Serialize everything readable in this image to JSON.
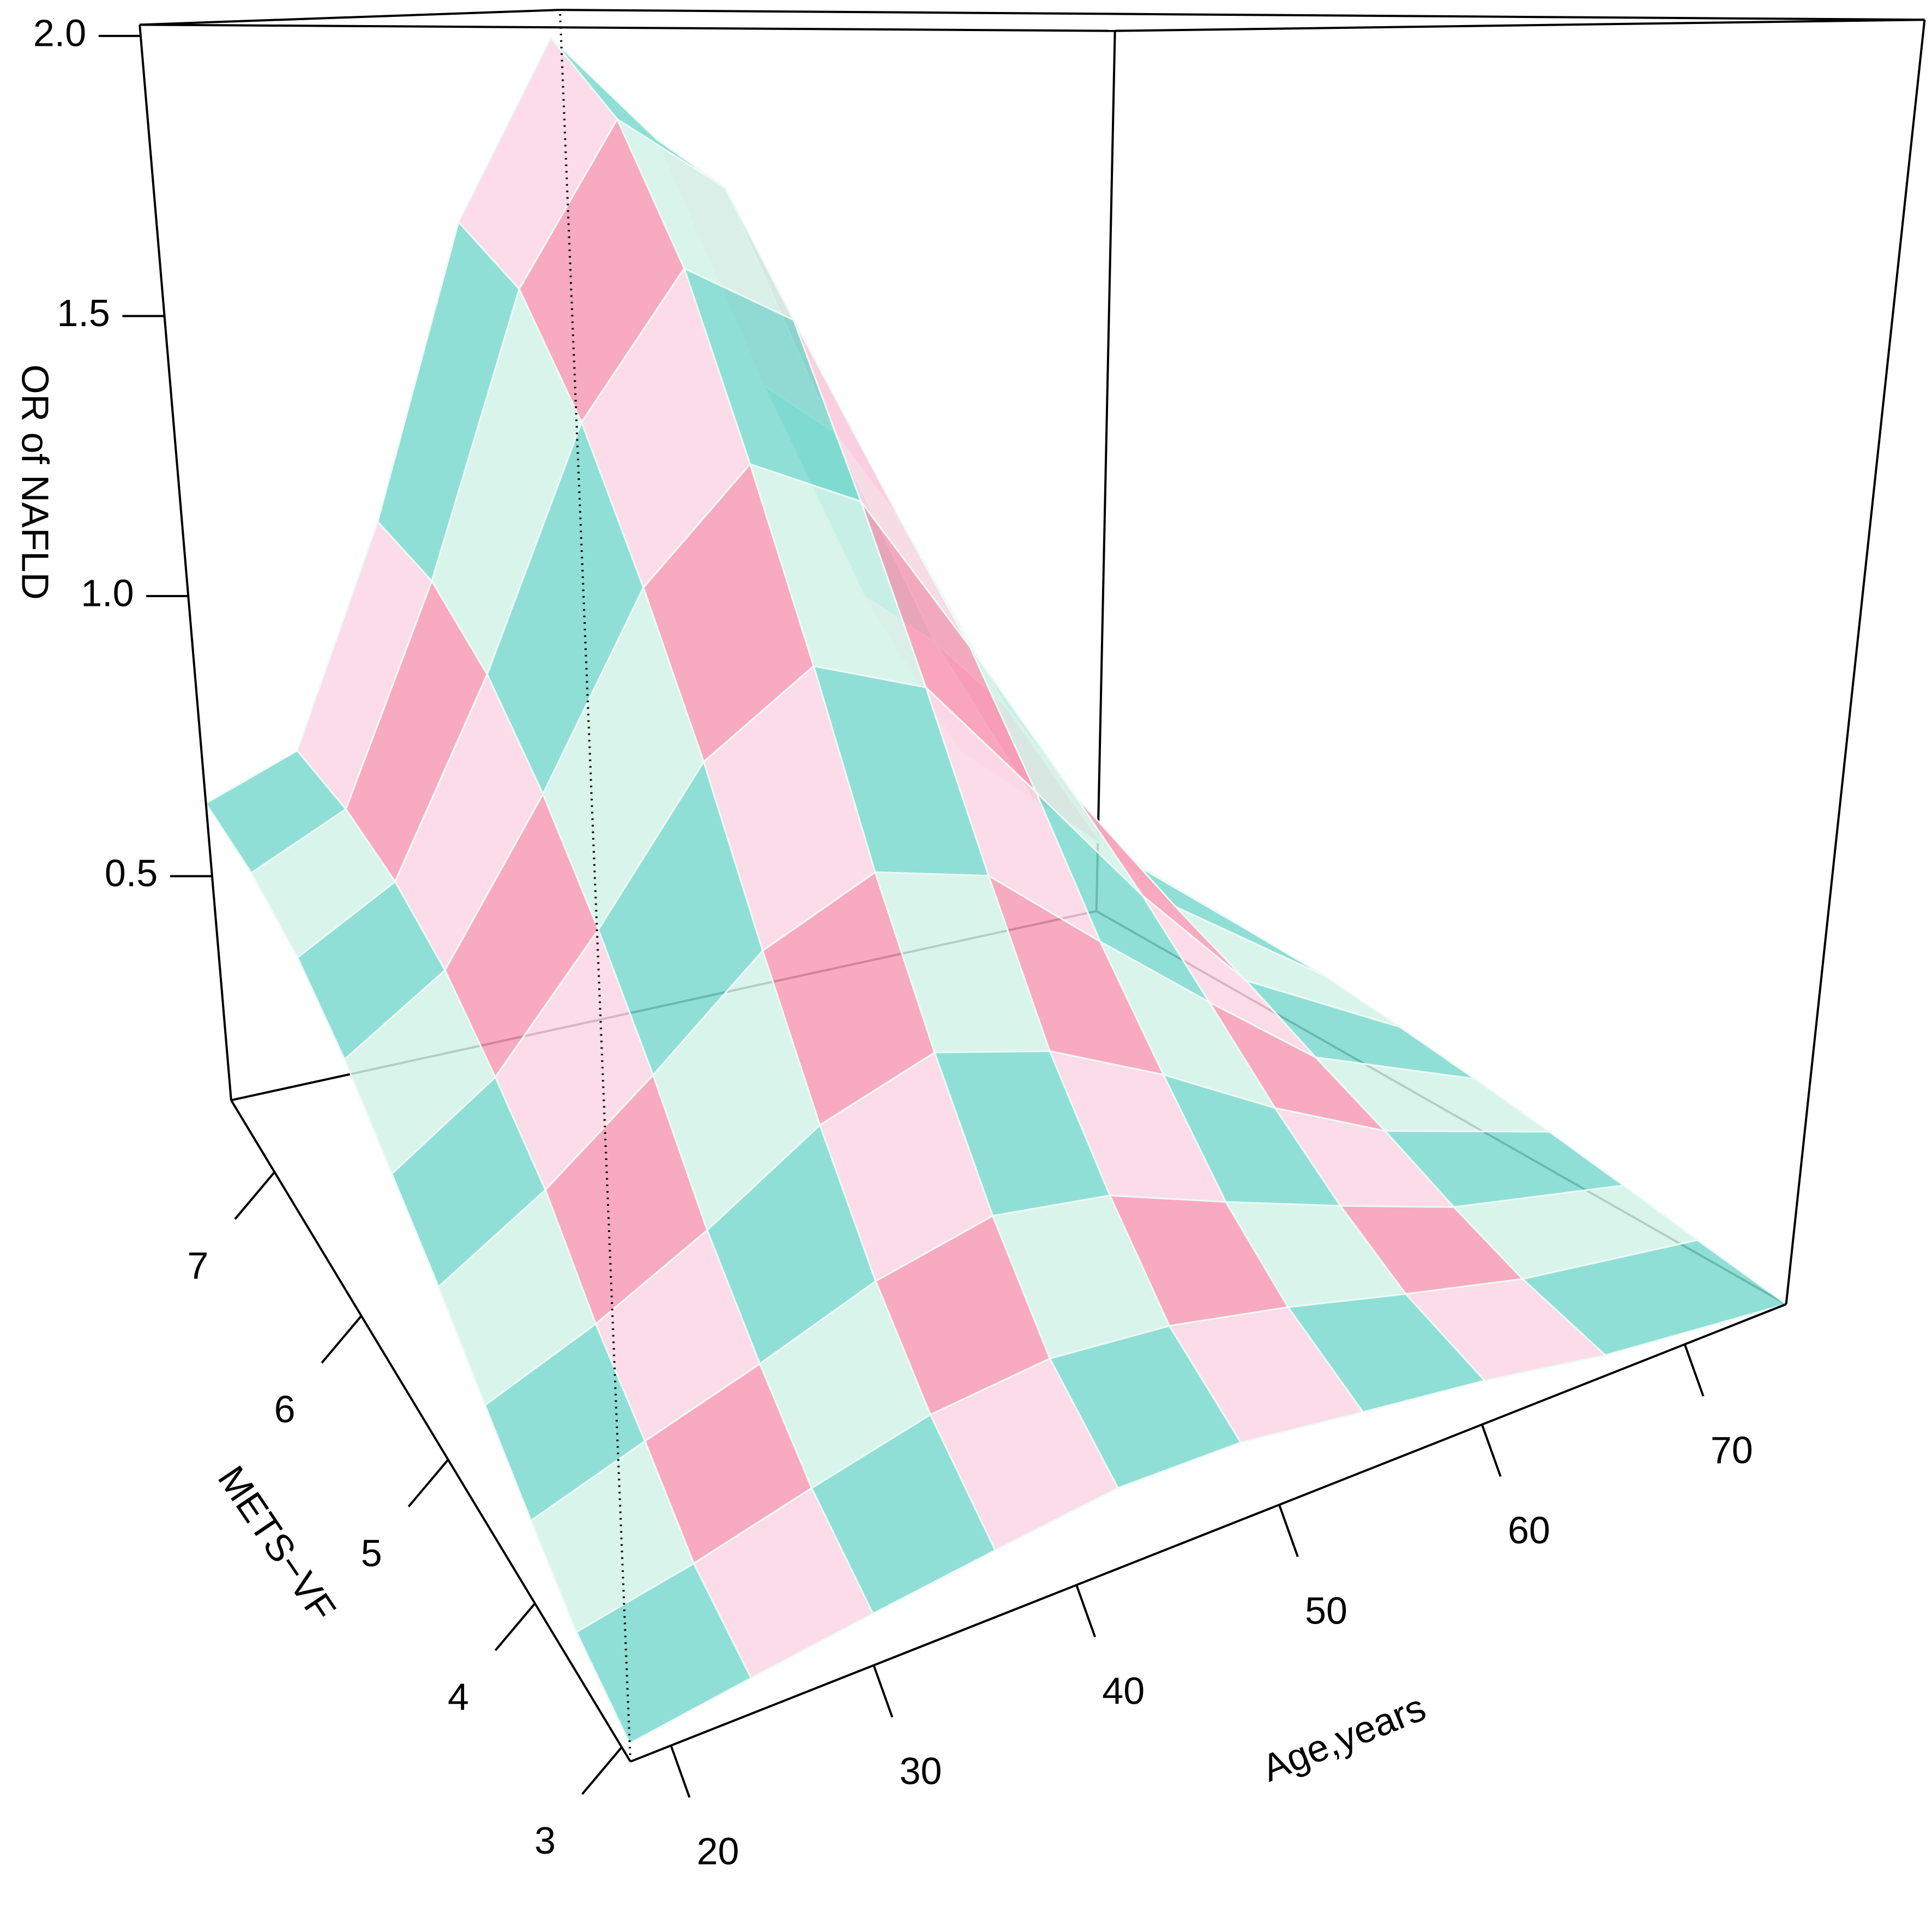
{
  "chart_data": {
    "type": "surface",
    "xlabel": "Age,years",
    "ylabel": "METS−VF",
    "zlabel": "OR of NAFLD",
    "xlim": [
      18,
      75
    ],
    "ylim": [
      2.9,
      7.5
    ],
    "zlim": [
      0.1,
      2.02
    ],
    "xticks": [
      20,
      30,
      40,
      50,
      60,
      70
    ],
    "yticks": [
      3,
      4,
      5,
      6,
      7
    ],
    "zticks": [
      0.5,
      {
        "value": 1,
        "label": "1.0"
      },
      1.5,
      {
        "value": 2,
        "label": "2.0"
      }
    ],
    "colors": [
      "#7dd9cf",
      "#fcd6e4",
      "#d2f2e8",
      "#f79bb5"
    ],
    "x": [
      18,
      24,
      30,
      36,
      42,
      48,
      54,
      60,
      66,
      75
    ],
    "y": [
      2.9,
      3.5,
      4,
      4.5,
      5,
      5.5,
      6,
      6.5,
      7,
      7.5
    ],
    "z": [
      [
        0.12,
        0.14,
        0.16,
        0.18,
        0.2,
        0.2,
        0.18,
        0.16,
        0.13,
        0.1
      ],
      [
        0.15,
        0.18,
        0.22,
        0.26,
        0.28,
        0.27,
        0.24,
        0.2,
        0.16,
        0.12
      ],
      [
        0.2,
        0.25,
        0.3,
        0.36,
        0.4,
        0.38,
        0.32,
        0.26,
        0.2,
        0.14
      ],
      [
        0.26,
        0.32,
        0.4,
        0.5,
        0.56,
        0.52,
        0.44,
        0.34,
        0.25,
        0.16
      ],
      [
        0.33,
        0.42,
        0.54,
        0.68,
        0.76,
        0.72,
        0.58,
        0.44,
        0.3,
        0.18
      ],
      [
        0.4,
        0.5,
        0.68,
        0.9,
        1.02,
        0.96,
        0.76,
        0.55,
        0.36,
        0.2
      ],
      [
        0.48,
        0.58,
        0.82,
        1.12,
        1.3,
        1.22,
        0.95,
        0.66,
        0.42,
        0.22
      ],
      [
        0.55,
        0.64,
        0.95,
        1.35,
        1.6,
        1.5,
        1.12,
        0.76,
        0.46,
        0.23
      ],
      [
        0.6,
        0.68,
        1.05,
        1.55,
        1.85,
        1.72,
        1.25,
        0.82,
        0.48,
        0.24
      ],
      [
        0.63,
        0.7,
        1.1,
        1.65,
        2.0,
        1.8,
        1.3,
        0.85,
        0.5,
        0.25
      ]
    ]
  }
}
